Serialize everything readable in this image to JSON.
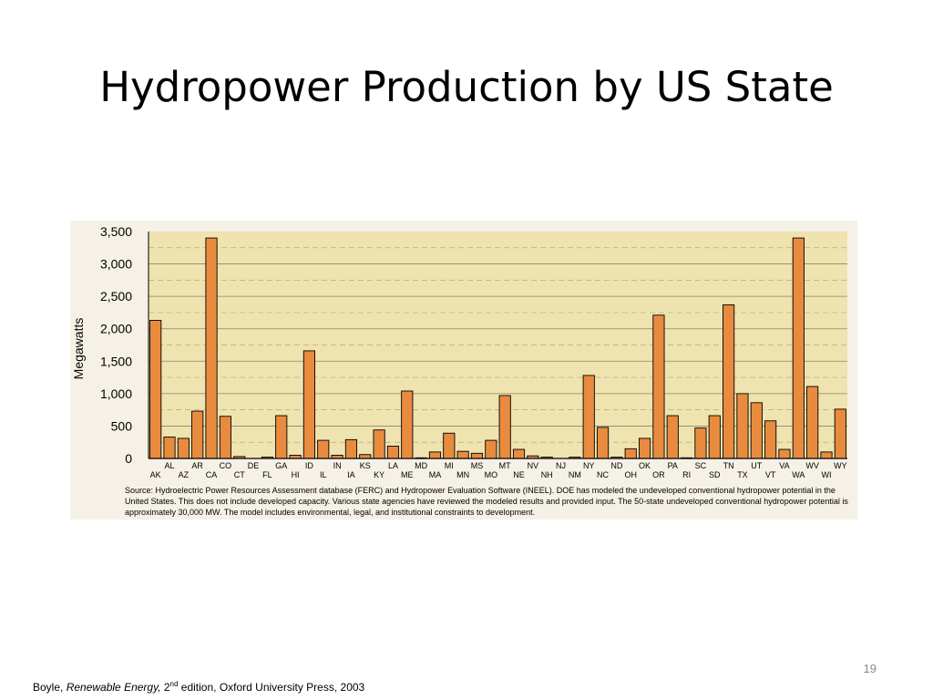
{
  "slide": {
    "title": "Hydropower Production by US State",
    "page_number": "19",
    "citation": {
      "author": "Boyle, ",
      "book": "Renewable Energy,",
      "edition_num": " 2",
      "edition_sup": "nd",
      "rest": " edition, Oxford University Press, 2003"
    }
  },
  "chart_data": {
    "type": "bar",
    "title": "",
    "xlabel": "",
    "ylabel": "Megawatts",
    "ylim": [
      0,
      3500
    ],
    "yticks": [
      "0",
      "500",
      "1,000",
      "1,500",
      "2,000",
      "2,500",
      "3,000",
      "3,500"
    ],
    "categories": [
      "AK",
      "AL",
      "AZ",
      "AR",
      "CA",
      "CO",
      "CT",
      "DE",
      "FL",
      "GA",
      "HI",
      "ID",
      "IL",
      "IN",
      "IA",
      "KS",
      "KY",
      "LA",
      "ME",
      "MD",
      "MA",
      "MI",
      "MN",
      "MS",
      "MO",
      "MT",
      "NE",
      "NV",
      "NH",
      "NJ",
      "NM",
      "NY",
      "NC",
      "ND",
      "OH",
      "OK",
      "OR",
      "PA",
      "RI",
      "SC",
      "SD",
      "TN",
      "TX",
      "UT",
      "VT",
      "VA",
      "WA",
      "WV",
      "WI",
      "WY"
    ],
    "values": [
      2130,
      330,
      310,
      730,
      3400,
      650,
      30,
      0,
      20,
      660,
      50,
      1660,
      280,
      50,
      290,
      60,
      440,
      190,
      1040,
      10,
      100,
      390,
      110,
      80,
      280,
      970,
      140,
      40,
      20,
      0,
      20,
      1280,
      480,
      20,
      150,
      310,
      2210,
      660,
      10,
      470,
      660,
      2370,
      1000,
      860,
      580,
      140,
      3400,
      1110,
      100,
      760
    ],
    "bar_color": "#e88b3e",
    "plot_background": "#efe3b0",
    "grid": true,
    "source_note": "Source: Hydroelectric Power Resources Assessment database (FERC) and Hydropower Evaluation Software (INEEL).  DOE has modeled the undeveloped conventional hydropower potential in the United States.  This does not include developed capacity.  Various state agencies have reviewed the modeled results and provided input.  The 50-state undeveloped conventional hydropower potential is approximately 30,000 MW.  The model includes environmental, legal, and institutional constraints to development."
  }
}
